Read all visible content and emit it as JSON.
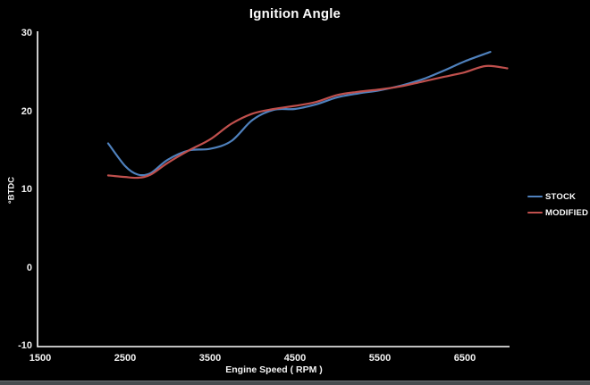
{
  "title": "Ignition Angle",
  "legend": {
    "items": [
      "STOCK",
      "MODIFIED"
    ]
  },
  "chart_data": {
    "type": "line",
    "title": "Ignition Angle",
    "xlabel": "Engine Speed ( RPM )",
    "ylabel": "°BTDC",
    "xlim": [
      1500,
      7000
    ],
    "ylim": [
      -10,
      30
    ],
    "x_ticks": [
      1500,
      2500,
      3500,
      4500,
      5500,
      6500
    ],
    "y_ticks": [
      30,
      20,
      10,
      0,
      -10
    ],
    "grid": false,
    "legend_position": "right",
    "background": "#000000",
    "axis_color": "#ffffff",
    "series": [
      {
        "name": "STOCK",
        "color": "#4f81bd",
        "x": [
          2300,
          2500,
          2650,
          2800,
          3000,
          3250,
          3500,
          3750,
          4000,
          4250,
          4500,
          4750,
          5000,
          5250,
          5500,
          5750,
          6000,
          6250,
          6500,
          6800
        ],
        "y": [
          16.0,
          13.1,
          12.0,
          12.2,
          13.9,
          15.1,
          15.3,
          16.3,
          19.0,
          20.3,
          20.4,
          21.0,
          21.9,
          22.4,
          22.8,
          23.4,
          24.2,
          25.3,
          26.5,
          27.7
        ]
      },
      {
        "name": "MODIFIED",
        "color": "#c0504d",
        "x": [
          2300,
          2500,
          2650,
          2800,
          3000,
          3250,
          3500,
          3750,
          4000,
          4250,
          4500,
          4750,
          5000,
          5250,
          5500,
          5750,
          6000,
          6250,
          6500,
          6750,
          7000
        ],
        "y": [
          11.9,
          11.7,
          11.6,
          12.0,
          13.5,
          15.1,
          16.5,
          18.5,
          19.8,
          20.4,
          20.8,
          21.3,
          22.2,
          22.6,
          22.9,
          23.3,
          23.9,
          24.5,
          25.1,
          25.9,
          25.6
        ]
      }
    ]
  }
}
